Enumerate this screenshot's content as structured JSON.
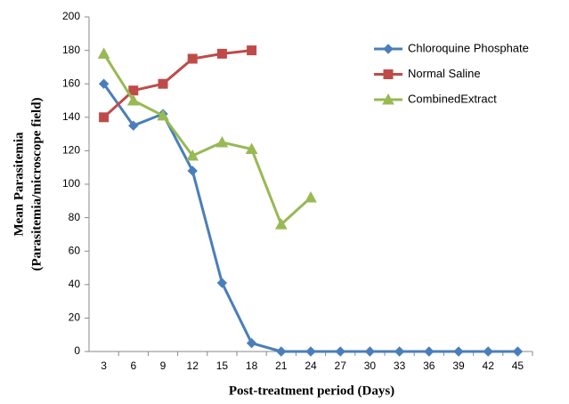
{
  "chart_data": {
    "type": "line",
    "categories": [
      "3",
      "6",
      "9",
      "12",
      "15",
      "18",
      "21",
      "24",
      "27",
      "30",
      "33",
      "36",
      "39",
      "42",
      "45"
    ],
    "series": [
      {
        "name": "Chloroquine Phosphate",
        "color": "#4a7ebb",
        "marker": "diamond",
        "values": [
          160,
          135,
          142,
          108,
          41,
          5,
          0,
          0,
          0,
          0,
          0,
          0,
          0,
          0,
          0
        ]
      },
      {
        "name": "Normal Saline",
        "color": "#be4b48",
        "marker": "square",
        "values": [
          140,
          156,
          160,
          175,
          178,
          180,
          null,
          null,
          null,
          null,
          null,
          null,
          null,
          null,
          null
        ]
      },
      {
        "name": "CombinedExtract",
        "color": "#98b954",
        "marker": "triangle",
        "values": [
          178,
          150,
          141,
          117,
          125,
          121,
          76,
          92,
          null,
          null,
          null,
          null,
          null,
          null,
          null
        ]
      }
    ],
    "ylim": [
      0,
      200
    ],
    "yticks": [
      0,
      20,
      40,
      60,
      80,
      100,
      120,
      140,
      160,
      180,
      200
    ],
    "xlabel": "Post-treatment period (Days)",
    "ylabel": [
      "Mean Parasitemia",
      "(Parasitemia/microscope field)"
    ],
    "grid": false,
    "legend": "upper right"
  }
}
